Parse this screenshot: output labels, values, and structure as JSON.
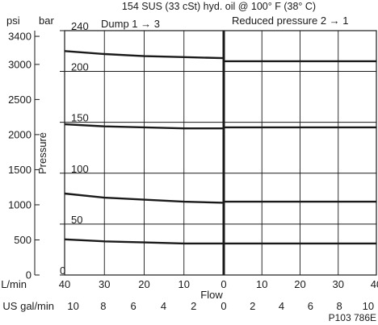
{
  "chart_data": {
    "type": "line",
    "title": "154 SUS (33 cSt) hyd. oil @ 100° F (38° C)",
    "ylabel": "Pressure",
    "xlabel": "Flow",
    "ylim": [
      0,
      240
    ],
    "psi_scale": {
      "unit": "psi",
      "ticks": [
        0,
        500,
        1000,
        1500,
        2000,
        2500,
        3000,
        3400
      ]
    },
    "bar_scale": {
      "unit": "bar",
      "ticks": [
        0,
        50,
        100,
        150,
        200,
        240
      ]
    },
    "flow_lmin": {
      "unit": "L/min",
      "ticks": [
        "40",
        "30",
        "20",
        "10",
        "0",
        "10",
        "20",
        "30",
        "40"
      ]
    },
    "flow_usgal": {
      "unit": "US gal/min",
      "ticks": [
        "10",
        "8",
        "6",
        "4",
        "2",
        "0",
        "2",
        "4",
        "6",
        "8",
        "10"
      ]
    },
    "panels": [
      {
        "title": "Dump  1  →  3",
        "x_direction": "reversed",
        "series": [
          {
            "x": [
              40,
              30,
              20,
              10,
              0
            ],
            "y": [
              220,
              217,
              215,
              214,
              213
            ]
          },
          {
            "x": [
              40,
              30,
              20,
              10,
              0
            ],
            "y": [
              148,
              146,
              145,
              144,
              144
            ]
          },
          {
            "x": [
              40,
              30,
              20,
              10,
              0
            ],
            "y": [
              80,
              76,
              74,
              72,
              71
            ]
          },
          {
            "x": [
              40,
              30,
              20,
              10,
              0
            ],
            "y": [
              35,
              33,
              32,
              31,
              31
            ]
          }
        ]
      },
      {
        "title": "Reduced pressure  2  →  1",
        "series": [
          {
            "x": [
              0,
              10,
              20,
              30,
              40
            ],
            "y": [
              210,
              210,
              210,
              210,
              210
            ]
          },
          {
            "x": [
              0,
              10,
              20,
              30,
              40
            ],
            "y": [
              145,
              145,
              145,
              145,
              145
            ]
          },
          {
            "x": [
              0,
              10,
              20,
              30,
              40
            ],
            "y": [
              72,
              72,
              72,
              72,
              72
            ]
          },
          {
            "x": [
              0,
              10,
              20,
              30,
              40
            ],
            "y": [
              31,
              31,
              31,
              31,
              31
            ]
          }
        ]
      }
    ],
    "figure_code": "P103 786E"
  }
}
